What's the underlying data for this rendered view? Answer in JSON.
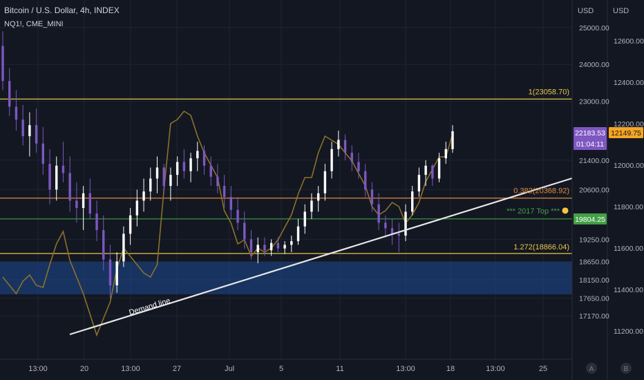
{
  "header": {
    "title": "Bitcoin / U.S. Dollar, 4h, INDEX",
    "overlay_symbol": "NQ1!, CME_MINI"
  },
  "colors": {
    "background": "#131722",
    "grid": "#1f2433",
    "axis_text": "#b2b5be",
    "candle_up": "#ffffff",
    "candle_down": "#7e57c2",
    "overlay_line": "#8c7229",
    "level_1": "#e6c84a",
    "fib_0382": "#e08a3a",
    "top_2017": "#43a047",
    "fib_1272_zone": "#1e4a94",
    "demand_line": "#e6e6e6",
    "price_tag_btc": "#7e57c2",
    "price_tag_nq": "#f5a623"
  },
  "chart_data": {
    "type": "candlestick",
    "x_ticks": [
      "13:00",
      "20",
      "13:00",
      "27",
      "Jul",
      "5",
      "11",
      "13:00",
      "18",
      "13:00",
      "25"
    ],
    "left_axis": {
      "label": "USD",
      "ticks": [
        "25000.00",
        "24000.00",
        "23000.00",
        "21400.00",
        "20600.00",
        "19250.00",
        "18650.00",
        "18150.00",
        "17650.00",
        "17170.00"
      ]
    },
    "right_axis": {
      "label": "USD",
      "ticks": [
        "12600.00",
        "12400.00",
        "12200.00",
        "12000.00",
        "11800.00",
        "11600.00",
        "11400.00",
        "11200.00"
      ]
    },
    "levels": [
      {
        "name": "level-1",
        "label": "1(23058.70)",
        "value": 23058.7
      },
      {
        "name": "fib-0382",
        "label": "0.382(20368.92)",
        "value": 20368.92
      },
      {
        "name": "top-2017",
        "label": "*** 2017 Top ***",
        "tag": "19804.25",
        "value": 19804.25
      },
      {
        "name": "fib-1272",
        "label": "1.272(18866.04)",
        "value": 18866.04
      }
    ],
    "demand_line": {
      "label": "Demand line"
    },
    "price_tags": {
      "btc_price": "22183.53",
      "btc_countdown": "01:04:11",
      "nq_price": "12149.75"
    },
    "bottom_buttons": [
      "A",
      "B"
    ],
    "btc_candles": [
      [
        24500,
        24900,
        23300,
        23550
      ],
      [
        23550,
        23900,
        22600,
        22850
      ],
      [
        22850,
        23300,
        22200,
        22500
      ],
      [
        22500,
        22900,
        21800,
        22050
      ],
      [
        22050,
        22700,
        21500,
        22350
      ],
      [
        22350,
        22800,
        21600,
        21850
      ],
      [
        21850,
        22300,
        21000,
        21300
      ],
      [
        21300,
        21700,
        20200,
        20600
      ],
      [
        20600,
        21500,
        20300,
        21250
      ],
      [
        21250,
        21900,
        20800,
        21050
      ],
      [
        21050,
        21500,
        20000,
        20300
      ],
      [
        20300,
        20800,
        19700,
        20100
      ],
      [
        20100,
        20700,
        19500,
        20500
      ],
      [
        20500,
        20900,
        19800,
        19950
      ],
      [
        19950,
        20300,
        19200,
        19500
      ],
      [
        19500,
        19900,
        18400,
        18700
      ],
      [
        18700,
        19100,
        17650,
        18000
      ],
      [
        18000,
        18900,
        17800,
        18650
      ],
      [
        18650,
        19600,
        18500,
        19400
      ],
      [
        19400,
        20100,
        19100,
        19900
      ],
      [
        19900,
        20600,
        19600,
        20300
      ],
      [
        20300,
        20900,
        20000,
        20550
      ],
      [
        20550,
        21200,
        20300,
        20900
      ],
      [
        20900,
        21500,
        20500,
        21200
      ],
      [
        21200,
        21300,
        20500,
        20700
      ],
      [
        20700,
        21200,
        20300,
        21000
      ],
      [
        21000,
        21500,
        20700,
        21350
      ],
      [
        21350,
        21700,
        20900,
        21100
      ],
      [
        21100,
        21600,
        20800,
        21450
      ],
      [
        21450,
        21900,
        21100,
        21650
      ],
      [
        21650,
        21800,
        21000,
        21250
      ],
      [
        21250,
        21500,
        20700,
        20950
      ],
      [
        20950,
        21300,
        20500,
        20700
      ],
      [
        20700,
        21000,
        20100,
        20400
      ],
      [
        20400,
        20700,
        19800,
        20050
      ],
      [
        20050,
        20400,
        19500,
        19700
      ],
      [
        19700,
        20000,
        19000,
        19250
      ],
      [
        19250,
        19500,
        18700,
        18900
      ],
      [
        18900,
        19300,
        18600,
        19100
      ],
      [
        19100,
        19300,
        18800,
        18950
      ],
      [
        18950,
        19250,
        18800,
        19150
      ],
      [
        19150,
        19300,
        18900,
        19000
      ],
      [
        19000,
        19200,
        18850,
        19100
      ],
      [
        19100,
        19350,
        18900,
        19200
      ],
      [
        19200,
        19800,
        19100,
        19600
      ],
      [
        19600,
        20200,
        19400,
        20000
      ],
      [
        20000,
        20500,
        19800,
        20300
      ],
      [
        20300,
        20700,
        20000,
        20500
      ],
      [
        20500,
        21300,
        20300,
        21100
      ],
      [
        21100,
        21900,
        20900,
        21700
      ],
      [
        21700,
        22200,
        21500,
        21950
      ],
      [
        21950,
        22100,
        21400,
        21600
      ],
      [
        21600,
        21800,
        21100,
        21350
      ],
      [
        21350,
        21600,
        20900,
        21100
      ],
      [
        21100,
        21300,
        20400,
        20600
      ],
      [
        20600,
        20800,
        20000,
        20200
      ],
      [
        20200,
        20500,
        19500,
        19700
      ],
      [
        19700,
        19900,
        19300,
        19550
      ],
      [
        19550,
        19800,
        19100,
        19400
      ],
      [
        19400,
        19700,
        18900,
        19350
      ],
      [
        19350,
        20200,
        19200,
        20000
      ],
      [
        20000,
        20700,
        19900,
        20550
      ],
      [
        20550,
        21200,
        20400,
        21000
      ],
      [
        21000,
        21400,
        20700,
        21250
      ],
      [
        21250,
        21300,
        20700,
        20900
      ],
      [
        20900,
        21600,
        20800,
        21450
      ],
      [
        21450,
        21900,
        21300,
        21700
      ],
      [
        21700,
        22350,
        21600,
        22183.53
      ]
    ],
    "nq_overlay": [
      11460,
      11420,
      11380,
      11440,
      11470,
      11420,
      11410,
      11520,
      11620,
      11680,
      11540,
      11460,
      11380,
      11280,
      11180,
      11260,
      11340,
      11500,
      11600,
      11560,
      11520,
      11480,
      11460,
      11520,
      11880,
      12200,
      12220,
      12260,
      12240,
      12140,
      12060,
      12000,
      11940,
      11780,
      11720,
      11620,
      11640,
      11560,
      11600,
      11580,
      11600,
      11640,
      11700,
      11760,
      11860,
      11940,
      11940,
      12060,
      12140,
      12120,
      12100,
      12060,
      12020,
      11960,
      11900,
      11800,
      11760,
      11780,
      11820,
      11800,
      11720,
      11760,
      11820,
      11920,
      11980,
      12040,
      12040,
      12149.75
    ]
  }
}
